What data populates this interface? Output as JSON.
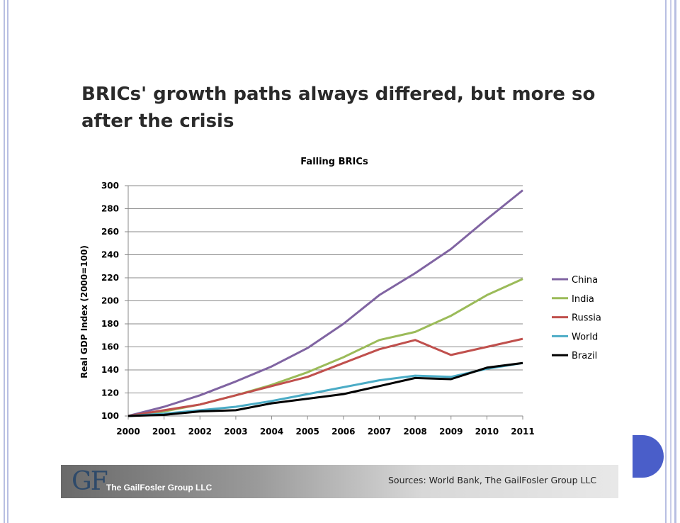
{
  "slide": {
    "title": "BRICs' growth paths always differed, but more so after the crisis"
  },
  "footer": {
    "logo_mark": "GF",
    "logo_text": "The GailFosler Group LLC",
    "sources": "Sources: World Bank, The GailFosler Group LLC"
  },
  "colors": {
    "China": "#8064a2",
    "India": "#9bbb59",
    "Russia": "#c0504d",
    "World": "#4bacc6",
    "Brazil": "#000000",
    "accent": "#4a5ec9"
  },
  "chart_data": {
    "type": "line",
    "title": "Falling BRICs",
    "xlabel": "",
    "ylabel": "Real GDP Index (2000=100)",
    "x": [
      "2000",
      "2001",
      "2002",
      "2003",
      "2004",
      "2005",
      "2006",
      "2007",
      "2008",
      "2009",
      "2010",
      "2011"
    ],
    "ylim": [
      100,
      300
    ],
    "yticks": [
      100,
      120,
      140,
      160,
      180,
      200,
      220,
      240,
      260,
      280,
      300
    ],
    "grid": true,
    "legend_position": "right",
    "series": [
      {
        "name": "China",
        "values": [
          100,
          108,
          118,
          130,
          143,
          159,
          180,
          205,
          224,
          245,
          271,
          296
        ]
      },
      {
        "name": "India",
        "values": [
          100,
          104,
          110,
          118,
          127,
          138,
          151,
          166,
          173,
          187,
          205,
          219
        ]
      },
      {
        "name": "Russia",
        "values": [
          100,
          105,
          110,
          118,
          126,
          134,
          146,
          158,
          166,
          153,
          160,
          167
        ]
      },
      {
        "name": "World",
        "values": [
          100,
          102,
          105,
          108,
          113,
          119,
          125,
          131,
          135,
          134,
          141,
          146
        ]
      },
      {
        "name": "Brazil",
        "values": [
          100,
          101,
          104,
          105,
          111,
          115,
          119,
          126,
          133,
          132,
          142,
          146
        ]
      }
    ]
  }
}
